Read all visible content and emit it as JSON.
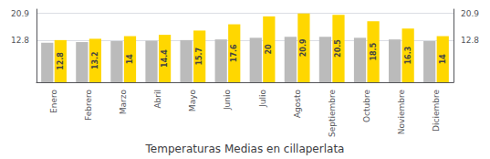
{
  "chart_data": {
    "type": "bar",
    "title": "Temperaturas Medias en cillaperlata",
    "categories": [
      "Enero",
      "Febrero",
      "Marzo",
      "Abril",
      "Mayo",
      "Junio",
      "Julio",
      "Agosto",
      "Septiembre",
      "Octubre",
      "Noviembre",
      "Diciembre"
    ],
    "series": [
      {
        "color": "#BBBBBB",
        "values": [
          12.0,
          12.2,
          12.5,
          12.6,
          12.8,
          13.0,
          13.5,
          13.8,
          13.8,
          13.5,
          13.0,
          12.5
        ]
      },
      {
        "color": "#FFD700",
        "data_labels": true,
        "values": [
          12.8,
          13.2,
          14.0,
          14.4,
          15.7,
          17.6,
          20.0,
          20.9,
          20.5,
          18.5,
          16.3,
          14.0
        ]
      }
    ],
    "ylim": [
      0,
      22.2
    ],
    "yticks": [
      12.8,
      20.9
    ],
    "y2lim": [
      0,
      22.2
    ],
    "y2ticks": [
      12.8,
      20.9
    ],
    "grid": true
  }
}
